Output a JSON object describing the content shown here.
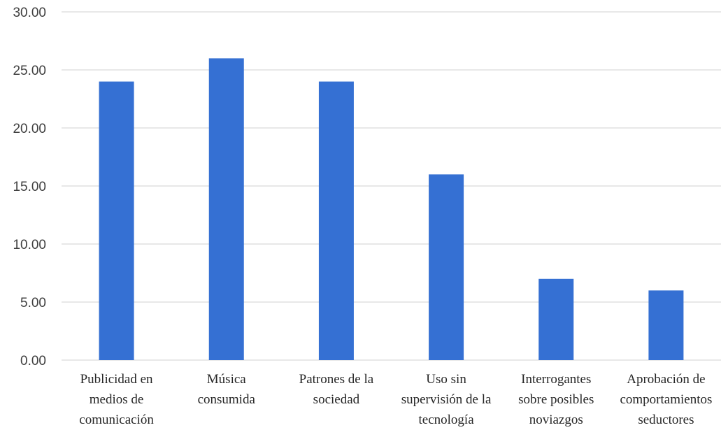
{
  "chart_data": {
    "type": "bar",
    "title": "",
    "xlabel": "",
    "ylabel": "",
    "categories": [
      [
        "Publicidad en",
        "medios de",
        "comunicación"
      ],
      [
        "Música",
        "consumida"
      ],
      [
        "Patrones de la",
        "sociedad"
      ],
      [
        "Uso sin",
        "supervisión de la",
        "tecnología"
      ],
      [
        "Interrogantes",
        "sobre posibles",
        "noviazgos"
      ],
      [
        "Aprobación de",
        "comportamientos",
        "seductores"
      ]
    ],
    "values": [
      24,
      26,
      24,
      16,
      7,
      6
    ],
    "ylim": [
      0,
      30
    ],
    "yticks": [
      "0.00",
      "5.00",
      "10.00",
      "15.00",
      "20.00",
      "25.00",
      "30.00"
    ],
    "grid": true,
    "bar_color": "#3570D3",
    "grid_color": "#D9D9D9"
  }
}
